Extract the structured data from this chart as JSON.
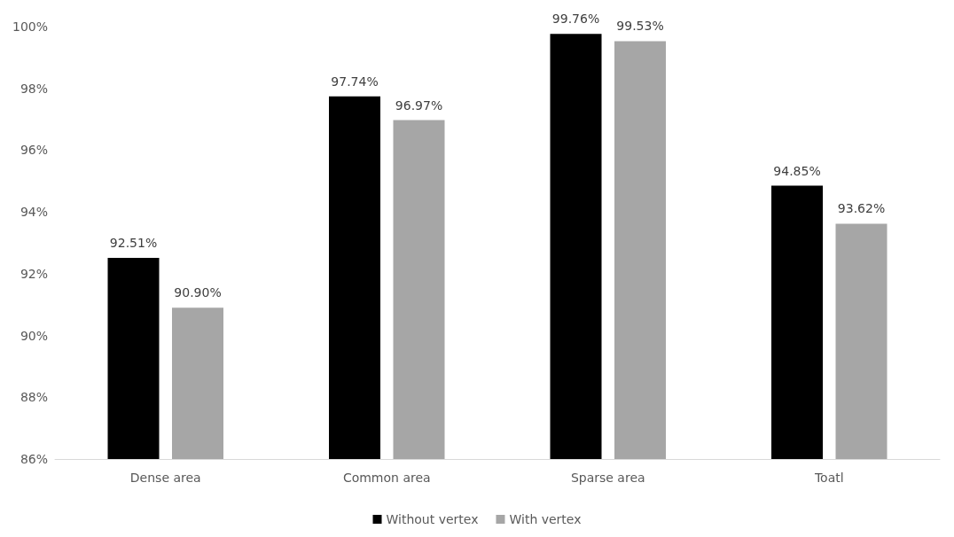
{
  "chart_data": {
    "type": "bar",
    "categories": [
      "Dense area",
      "Common area",
      "Sparse area",
      "Toatl"
    ],
    "series": [
      {
        "name": "Without vertex",
        "color": "#000000",
        "values": [
          92.51,
          97.74,
          99.76,
          94.85
        ],
        "value_labels": [
          "92.51%",
          "97.74%",
          "99.76%",
          "94.85%"
        ]
      },
      {
        "name": "With vertex",
        "color": "#a6a6a6",
        "values": [
          90.9,
          96.97,
          99.53,
          93.62
        ],
        "value_labels": [
          "90.90%",
          "96.97%",
          "99.53%",
          "93.62%"
        ]
      }
    ],
    "ylim": [
      86,
      100
    ],
    "yticks": [
      {
        "value": 86,
        "label": "86%"
      },
      {
        "value": 88,
        "label": "88%"
      },
      {
        "value": 90,
        "label": "90%"
      },
      {
        "value": 92,
        "label": "92%"
      },
      {
        "value": 94,
        "label": "94%"
      },
      {
        "value": 96,
        "label": "96%"
      },
      {
        "value": 98,
        "label": "98%"
      },
      {
        "value": 100,
        "label": "100%"
      }
    ],
    "grid": false,
    "legend": "bottom"
  }
}
